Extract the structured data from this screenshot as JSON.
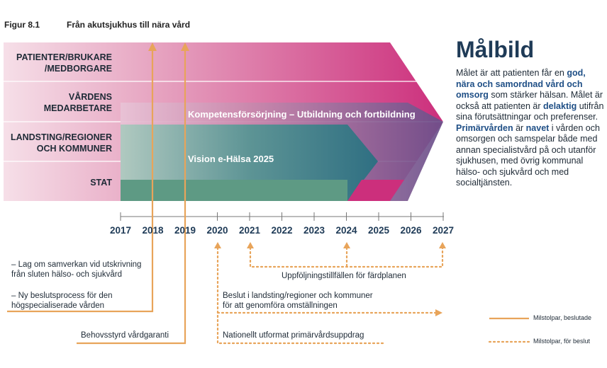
{
  "figure": {
    "label": "Figur 8.1",
    "title": "Från akutsjukhus till nära vård"
  },
  "rows": [
    {
      "label": "PATIENTER/BRUKARE\n/MEDBORGARE"
    },
    {
      "label": "VÅRDENS\nMEDARBETARE"
    },
    {
      "label": "LANDSTING/REGIONER\nOCH KOMMUNER"
    },
    {
      "label": "STAT"
    }
  ],
  "bands": {
    "competence": "Kompetensförsörjning – Utbildning och fortbildning",
    "vision": "Vision e-Hälsa 2025"
  },
  "timeline": {
    "years": [
      "2017",
      "2018",
      "2019",
      "2020",
      "2021",
      "2022",
      "2023",
      "2024",
      "2025",
      "2026",
      "2027"
    ]
  },
  "milestones": {
    "m1_line1": "– Lag om samverkan vid utskrivning",
    "m1_line2": "från sluten hälso- och sjukvård",
    "m2_line1": "– Ny beslutsprocess för den",
    "m2_line2": "högspecialiserade vården",
    "m3": "Behovsstyrd vårdgaranti",
    "p1": "Uppföljningstillfällen för färdplanen",
    "p2_line1": "Beslut i landsting/regioner och kommuner",
    "p2_line2": "för att genomföra omställningen",
    "p3": "Nationellt utformat primärvårdsuppdrag"
  },
  "legend": {
    "decided": "Milstolpar, beslutade",
    "proposed": "Milstolpar, för beslut"
  },
  "colors": {
    "orange": "#e8a45a",
    "navy": "#1f3b57",
    "magenta": "#c9307c",
    "purple": "#6a4f8a",
    "teal": "#3e7f86",
    "green": "#5e9a84"
  },
  "malbild": {
    "title": "Målbild",
    "t1": "Målet är att patienten får en ",
    "h1": "god, nära och samordnad vård och omsorg",
    "t2": " som stärker hälsan. Målet är också att patienten är ",
    "h2": "delaktig",
    "t3": " utifrån sina förutsättningar och preferenser. ",
    "h3": "Primärvården",
    "t4": " är ",
    "h4": "navet",
    "t5": " i vården och omsorgen och samspelar både med annan specialistvård på och utanför sjukhusen, med övrig kommunal hälso- och sjukvård och med socialtjänsten."
  }
}
